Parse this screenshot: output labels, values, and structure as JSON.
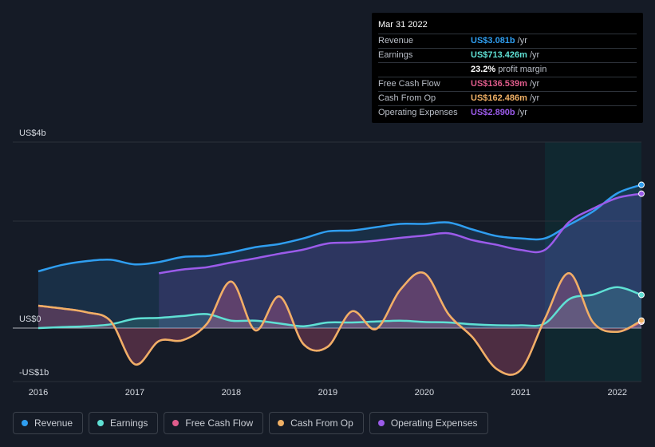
{
  "tooltip": {
    "date": "Mar 31 2022",
    "rows": [
      {
        "label": "Revenue",
        "value": "US$3.081b",
        "unit": "/yr",
        "color": "#2f9ef0"
      },
      {
        "label": "Earnings",
        "value": "US$713.426m",
        "unit": "/yr",
        "color": "#5fe0d4"
      },
      {
        "label": "",
        "value": "23.2%",
        "unit": "profit margin",
        "color": "#ffffff"
      },
      {
        "label": "Free Cash Flow",
        "value": "US$136.539m",
        "unit": "/yr",
        "color": "#e05c8c"
      },
      {
        "label": "Cash From Op",
        "value": "US$162.486m",
        "unit": "/yr",
        "color": "#f0b065"
      },
      {
        "label": "Operating Expenses",
        "value": "US$2.890b",
        "unit": "/yr",
        "color": "#9b5bea"
      }
    ]
  },
  "legend": [
    {
      "label": "Revenue",
      "color": "#2f9ef0"
    },
    {
      "label": "Earnings",
      "color": "#5fe0d4"
    },
    {
      "label": "Free Cash Flow",
      "color": "#e05c8c"
    },
    {
      "label": "Cash From Op",
      "color": "#f0b065"
    },
    {
      "label": "Operating Expenses",
      "color": "#9b5bea"
    }
  ],
  "chart_data": {
    "type": "area",
    "y_tick_labels": [
      "US$4b",
      "US$0",
      "-US$1b"
    ],
    "x_tick_labels": [
      "2016",
      "2017",
      "2018",
      "2019",
      "2020",
      "2021",
      "2022"
    ],
    "ylim": [
      -1,
      4
    ],
    "xlim": [
      2015.75,
      2022.25
    ],
    "forecast_shade_start": 2021.25,
    "series": [
      {
        "name": "Revenue",
        "color": "#2f9ef0",
        "fill": true,
        "points": [
          [
            2016.0,
            1.22
          ],
          [
            2016.25,
            1.36
          ],
          [
            2016.5,
            1.44
          ],
          [
            2016.75,
            1.47
          ],
          [
            2017.0,
            1.37
          ],
          [
            2017.25,
            1.42
          ],
          [
            2017.5,
            1.53
          ],
          [
            2017.75,
            1.55
          ],
          [
            2018.0,
            1.63
          ],
          [
            2018.25,
            1.74
          ],
          [
            2018.5,
            1.81
          ],
          [
            2018.75,
            1.93
          ],
          [
            2019.0,
            2.08
          ],
          [
            2019.25,
            2.1
          ],
          [
            2019.5,
            2.17
          ],
          [
            2019.75,
            2.24
          ],
          [
            2020.0,
            2.24
          ],
          [
            2020.25,
            2.27
          ],
          [
            2020.5,
            2.12
          ],
          [
            2020.75,
            1.98
          ],
          [
            2021.0,
            1.93
          ],
          [
            2021.25,
            1.93
          ],
          [
            2021.5,
            2.22
          ],
          [
            2021.75,
            2.51
          ],
          [
            2022.0,
            2.9
          ],
          [
            2022.25,
            3.081
          ]
        ]
      },
      {
        "name": "Operating Expenses",
        "color": "#9b5bea",
        "fill": true,
        "points": [
          [
            2017.25,
            1.18
          ],
          [
            2017.5,
            1.26
          ],
          [
            2017.75,
            1.31
          ],
          [
            2018.0,
            1.41
          ],
          [
            2018.25,
            1.5
          ],
          [
            2018.5,
            1.6
          ],
          [
            2018.75,
            1.69
          ],
          [
            2019.0,
            1.82
          ],
          [
            2019.25,
            1.84
          ],
          [
            2019.5,
            1.88
          ],
          [
            2019.75,
            1.94
          ],
          [
            2020.0,
            1.99
          ],
          [
            2020.25,
            2.04
          ],
          [
            2020.5,
            1.89
          ],
          [
            2020.75,
            1.79
          ],
          [
            2021.0,
            1.68
          ],
          [
            2021.25,
            1.68
          ],
          [
            2021.5,
            2.28
          ],
          [
            2021.75,
            2.57
          ],
          [
            2022.0,
            2.8
          ],
          [
            2022.25,
            2.89
          ]
        ]
      },
      {
        "name": "Earnings",
        "color": "#5fe0d4",
        "fill": true,
        "points": [
          [
            2016.0,
            0.0
          ],
          [
            2016.25,
            0.02
          ],
          [
            2016.5,
            0.04
          ],
          [
            2016.75,
            0.08
          ],
          [
            2017.0,
            0.2
          ],
          [
            2017.25,
            0.22
          ],
          [
            2017.5,
            0.26
          ],
          [
            2017.75,
            0.3
          ],
          [
            2018.0,
            0.16
          ],
          [
            2018.25,
            0.16
          ],
          [
            2018.5,
            0.1
          ],
          [
            2018.75,
            0.04
          ],
          [
            2019.0,
            0.12
          ],
          [
            2019.25,
            0.12
          ],
          [
            2019.5,
            0.14
          ],
          [
            2019.75,
            0.16
          ],
          [
            2020.0,
            0.13
          ],
          [
            2020.25,
            0.12
          ],
          [
            2020.5,
            0.08
          ],
          [
            2020.75,
            0.06
          ],
          [
            2021.0,
            0.06
          ],
          [
            2021.25,
            0.1
          ],
          [
            2021.5,
            0.62
          ],
          [
            2021.75,
            0.72
          ],
          [
            2022.0,
            0.88
          ],
          [
            2022.25,
            0.713
          ]
        ]
      },
      {
        "name": "Free Cash Flow",
        "color": "#e05c8c",
        "fill": true,
        "points": [
          [
            2016.0,
            0.48
          ],
          [
            2016.25,
            0.42
          ],
          [
            2016.5,
            0.34
          ],
          [
            2016.75,
            0.15
          ],
          [
            2017.0,
            -0.78
          ],
          [
            2017.25,
            -0.28
          ],
          [
            2017.5,
            -0.26
          ],
          [
            2017.75,
            0.1
          ],
          [
            2018.0,
            1.0
          ],
          [
            2018.25,
            -0.05
          ],
          [
            2018.5,
            0.68
          ],
          [
            2018.75,
            -0.35
          ],
          [
            2019.0,
            -0.4
          ],
          [
            2019.25,
            0.36
          ],
          [
            2019.5,
            -0.02
          ],
          [
            2019.75,
            0.82
          ],
          [
            2020.0,
            1.18
          ],
          [
            2020.25,
            0.3
          ],
          [
            2020.5,
            -0.2
          ],
          [
            2020.75,
            -0.88
          ],
          [
            2021.0,
            -0.9
          ],
          [
            2021.25,
            0.2
          ],
          [
            2021.5,
            1.18
          ],
          [
            2021.75,
            0.12
          ],
          [
            2022.0,
            -0.08
          ],
          [
            2022.25,
            0.137
          ]
        ]
      },
      {
        "name": "Cash From Op",
        "color": "#f0b065",
        "fill": false,
        "points": [
          [
            2016.0,
            0.48
          ],
          [
            2016.25,
            0.42
          ],
          [
            2016.5,
            0.34
          ],
          [
            2016.75,
            0.15
          ],
          [
            2017.0,
            -0.78
          ],
          [
            2017.25,
            -0.28
          ],
          [
            2017.5,
            -0.26
          ],
          [
            2017.75,
            0.1
          ],
          [
            2018.0,
            1.0
          ],
          [
            2018.25,
            -0.05
          ],
          [
            2018.5,
            0.68
          ],
          [
            2018.75,
            -0.35
          ],
          [
            2019.0,
            -0.4
          ],
          [
            2019.25,
            0.36
          ],
          [
            2019.5,
            -0.02
          ],
          [
            2019.75,
            0.82
          ],
          [
            2020.0,
            1.18
          ],
          [
            2020.25,
            0.3
          ],
          [
            2020.5,
            -0.2
          ],
          [
            2020.75,
            -0.88
          ],
          [
            2021.0,
            -0.9
          ],
          [
            2021.25,
            0.2
          ],
          [
            2021.5,
            1.18
          ],
          [
            2021.75,
            0.12
          ],
          [
            2022.0,
            -0.08
          ],
          [
            2022.25,
            0.162
          ]
        ]
      }
    ]
  }
}
